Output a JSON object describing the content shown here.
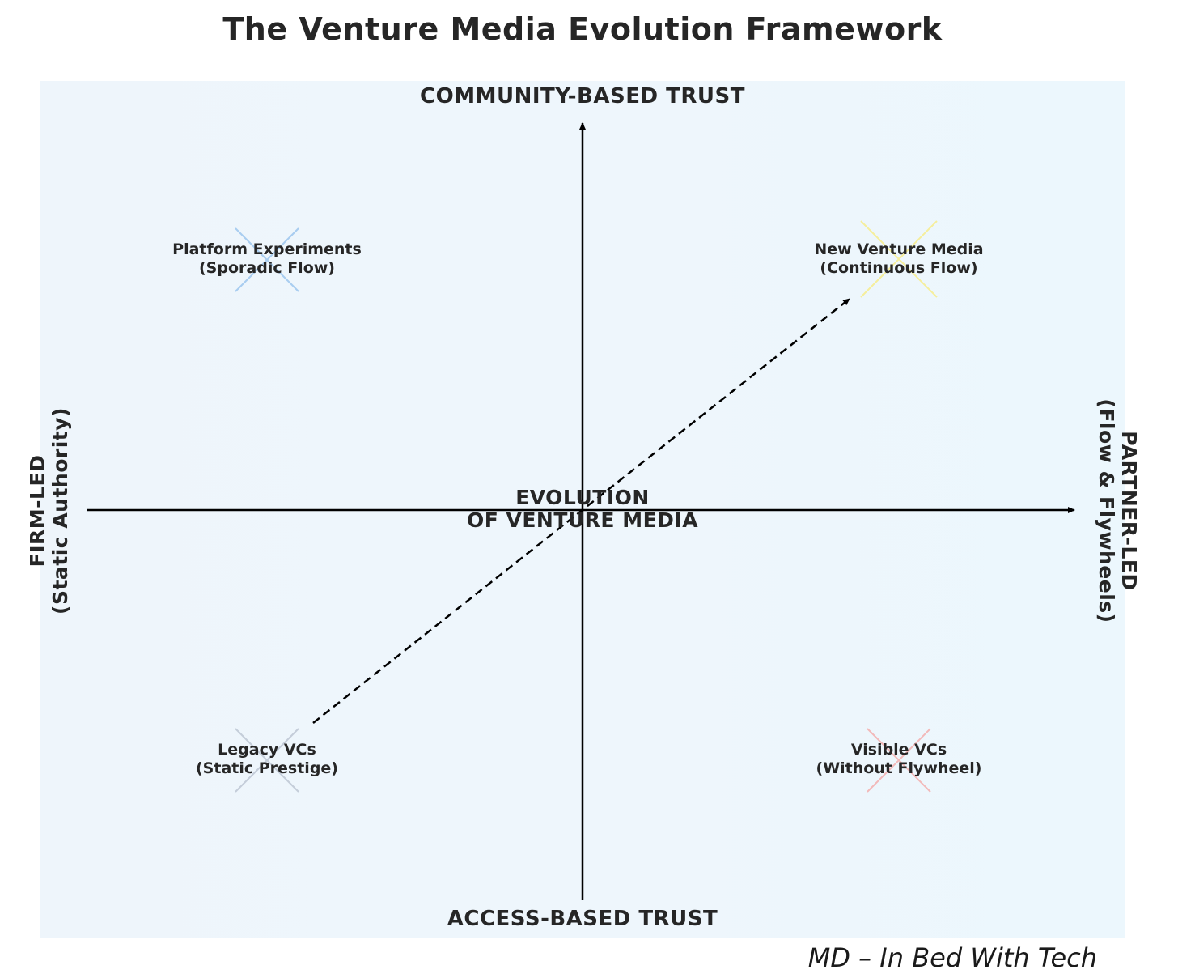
{
  "title": "The Venture Media Evolution Framework",
  "axes": {
    "top": "COMMUNITY-BASED TRUST",
    "bottom": "ACCESS-BASED TRUST",
    "left": {
      "line1": "FIRM-LED",
      "line2": "(Static Authority)"
    },
    "right": {
      "line1": "PARTNER-LED",
      "line2": "(Flow & Flywheels)"
    }
  },
  "center": {
    "line1": "EVOLUTION",
    "line2": "OF VENTURE MEDIA"
  },
  "quadrants": [
    {
      "line1": "Platform Experiments",
      "line2": "(Sporadic Flow)",
      "color": "#a8cdf0"
    },
    {
      "line1": "New Venture Media",
      "line2": "(Continuous Flow)",
      "color": "#f5ee9c"
    },
    {
      "line1": "Legacy VCs",
      "line2": "(Static Prestige)",
      "color": "#c4cdd9"
    },
    {
      "line1": "Visible VCs",
      "line2": "(Without Flywheel)",
      "color": "#f2b9b9"
    }
  ],
  "credit": "MD – In Bed With Tech"
}
